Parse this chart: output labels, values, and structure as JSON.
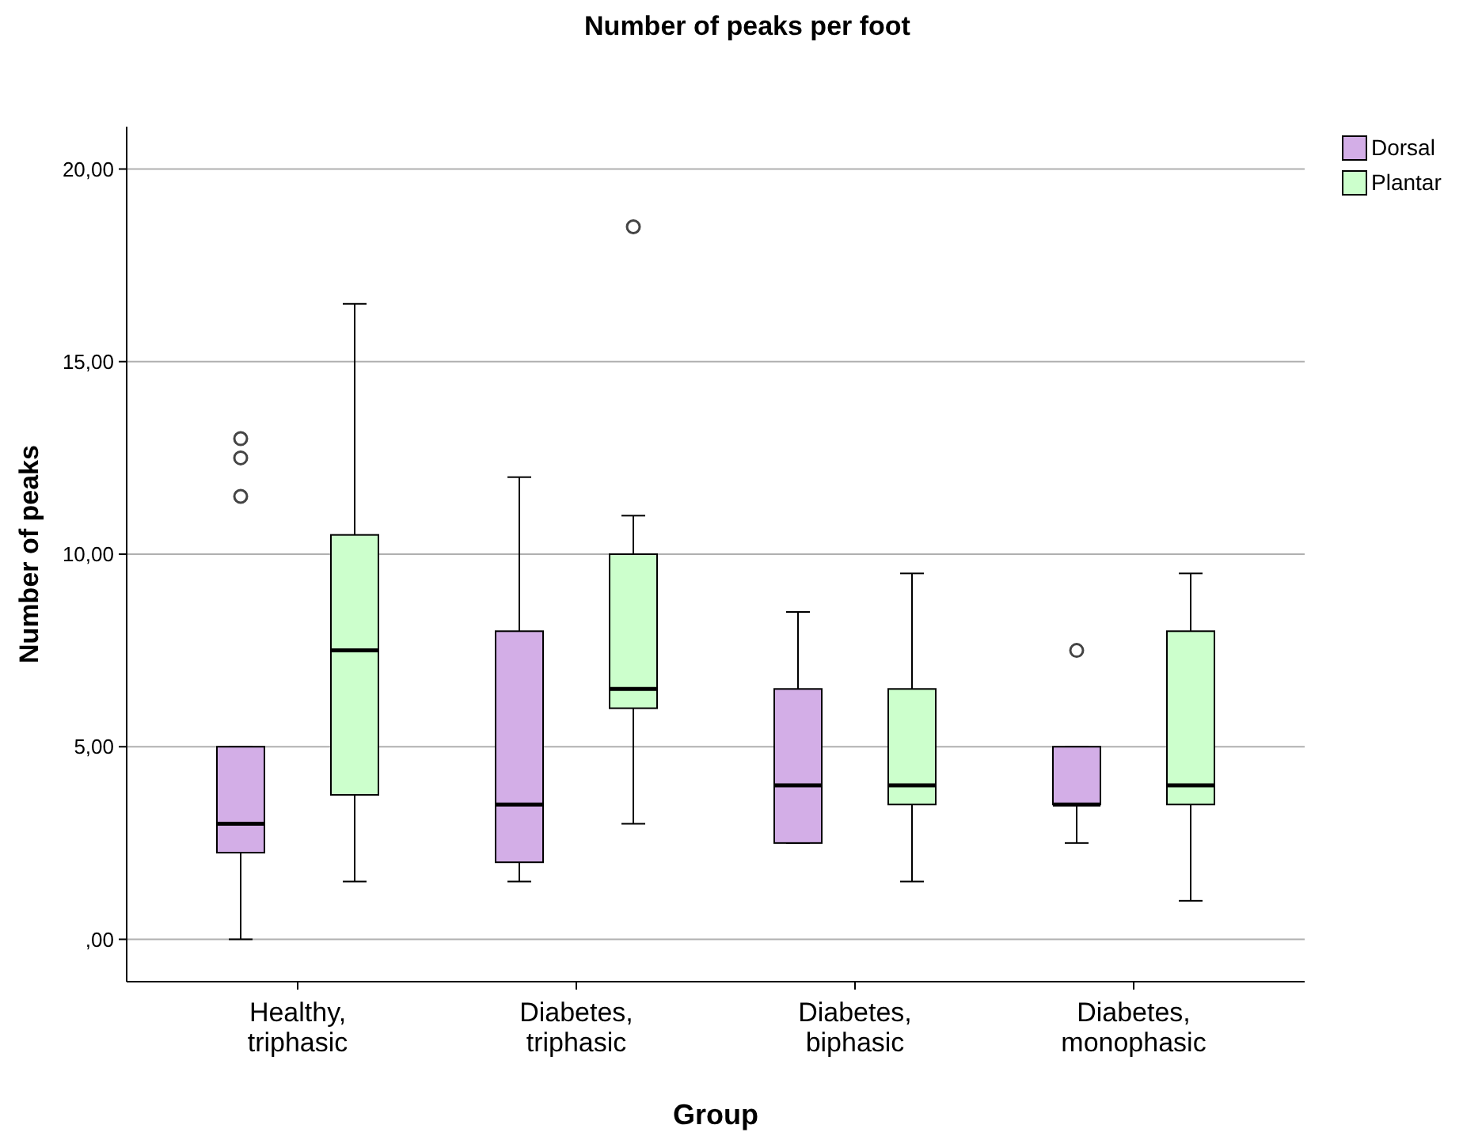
{
  "chart_data": {
    "type": "box",
    "title": "Number of peaks per foot",
    "xlabel": "Group",
    "ylabel": "Number of peaks",
    "categories": [
      "Healthy, triphasic",
      "Diabetes, triphasic",
      "Diabetes, biphasic",
      "Diabetes, monophasic"
    ],
    "series": [
      {
        "name": "Dorsal",
        "color": "#d3aee7",
        "boxes": [
          {
            "low": 0,
            "q1": 2.25,
            "median": 3,
            "q3": 5,
            "high": 5,
            "outliers": [
              11.5,
              12.5,
              13
            ]
          },
          {
            "low": 1.5,
            "q1": 2,
            "median": 3.5,
            "q3": 8,
            "high": 12
          },
          {
            "low": 2.5,
            "q1": 2.5,
            "median": 4,
            "q3": 6.5,
            "high": 8.5
          },
          {
            "low": 2.5,
            "q1": 3.5,
            "median": 3.5,
            "q3": 5,
            "high": 5,
            "outliers": [
              7.5
            ]
          }
        ]
      },
      {
        "name": "Plantar",
        "color": "#ccffcc",
        "boxes": [
          {
            "low": 1.5,
            "q1": 3.75,
            "median": 7.5,
            "q3": 10.5,
            "high": 16.5
          },
          {
            "low": 3,
            "q1": 6,
            "median": 6.5,
            "q3": 10,
            "high": 11,
            "outliers": [
              18.5
            ]
          },
          {
            "low": 1.5,
            "q1": 3.5,
            "median": 4,
            "q3": 6.5,
            "high": 9.5
          },
          {
            "low": 1,
            "q1": 3.5,
            "median": 4,
            "q3": 8,
            "high": 9.5
          }
        ]
      }
    ],
    "ylim": [
      -1.1,
      21.1
    ],
    "yticks": [
      {
        "value": 0,
        "label": ",00"
      },
      {
        "value": 5,
        "label": "5,00"
      },
      {
        "value": 10,
        "label": "10,00"
      },
      {
        "value": 15,
        "label": "15,00"
      },
      {
        "value": 20,
        "label": "20,00"
      }
    ],
    "grid": "y",
    "legend": "top right"
  }
}
